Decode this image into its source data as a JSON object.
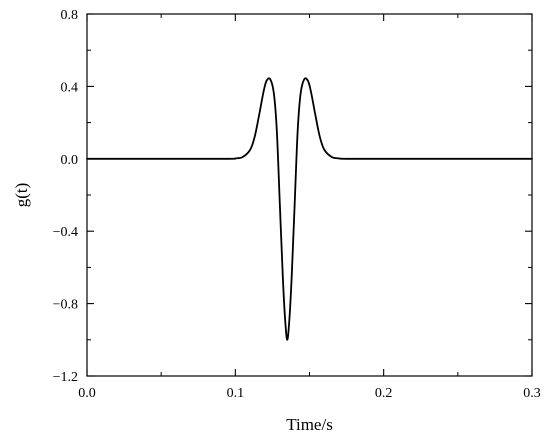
{
  "chart_data": {
    "type": "line",
    "title": "",
    "xlabel": "Time/s",
    "ylabel": "g(t)",
    "xlim": [
      0.0,
      0.3
    ],
    "ylim": [
      -1.2,
      0.8
    ],
    "grid": false,
    "x_ticks": [
      "0.0",
      "0.1",
      "0.2",
      "0.3"
    ],
    "y_ticks": [
      "0.8",
      "0.4",
      "0.0",
      "−0.4",
      "−0.8",
      "−1.2"
    ],
    "series": [
      {
        "color": "#000000",
        "x": [
          0.0,
          0.05,
          0.095,
          0.1,
          0.105,
          0.11,
          0.113,
          0.116,
          0.119,
          0.121,
          0.1235,
          0.126,
          0.128,
          0.13,
          0.132,
          0.1335,
          0.135,
          0.1365,
          0.138,
          0.14,
          0.142,
          0.144,
          0.1465,
          0.149,
          0.151,
          0.154,
          0.157,
          0.16,
          0.165,
          0.17,
          0.175,
          0.2,
          0.25,
          0.3
        ],
        "y": [
          0.0,
          0.0,
          0.0,
          0.002,
          0.01,
          0.05,
          0.12,
          0.24,
          0.37,
          0.43,
          0.44,
          0.36,
          0.15,
          -0.25,
          -0.65,
          -0.88,
          -1.0,
          -0.88,
          -0.65,
          -0.25,
          0.15,
          0.36,
          0.44,
          0.43,
          0.37,
          0.24,
          0.12,
          0.05,
          0.01,
          0.002,
          0.0,
          0.0,
          0.0,
          0.0
        ]
      }
    ]
  }
}
